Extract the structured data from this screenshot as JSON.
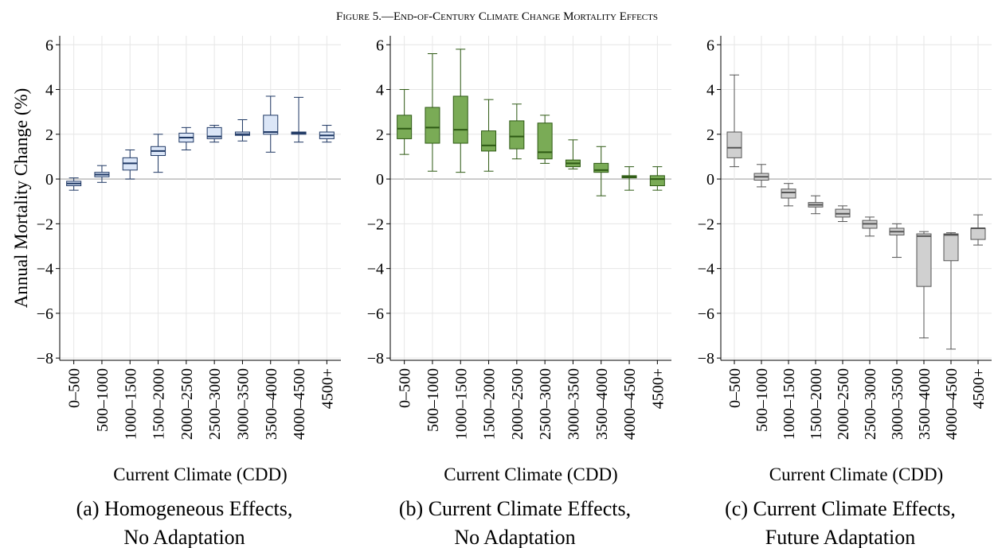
{
  "title": "Figure 5.—End-of-Century Climate Change Mortality Effects",
  "chart_data": [
    {
      "type": "box",
      "caption": [
        "(a) Homogeneous Effects,",
        "No Adaptation"
      ],
      "xlabel": "Current Climate (CDD)",
      "ylabel": "Annual Mortality Change (%)",
      "categories": [
        "0–500",
        "500–1000",
        "1000–1500",
        "1500–2000",
        "2000–2500",
        "2500–3000",
        "3000–3500",
        "3500–4000",
        "4000–4500",
        "4500+"
      ],
      "min": [
        -0.5,
        -0.15,
        0,
        0.3,
        1.3,
        1.65,
        1.7,
        1.2,
        1.65,
        1.65
      ],
      "q1": [
        -0.3,
        0.1,
        0.4,
        1.05,
        1.65,
        1.8,
        1.95,
        2.0,
        2.0,
        1.8
      ],
      "median": [
        -0.2,
        0.2,
        0.7,
        1.25,
        1.85,
        1.9,
        2.0,
        2.1,
        2.05,
        1.95
      ],
      "q3": [
        -0.1,
        0.3,
        0.95,
        1.45,
        2.05,
        2.3,
        2.1,
        2.85,
        2.1,
        2.1
      ],
      "max": [
        0.05,
        0.6,
        1.3,
        2.0,
        2.3,
        2.4,
        2.65,
        3.7,
        3.65,
        2.4
      ],
      "color": "#dbe6f7",
      "edgecolor": "#1f3864",
      "ylim": [
        -8.1,
        6.4
      ],
      "yticks": [
        {
          "value": -8,
          "label": "−8"
        },
        {
          "value": -6,
          "label": "−6"
        },
        {
          "value": -4,
          "label": "−4"
        },
        {
          "value": -2,
          "label": "−2"
        },
        0,
        2,
        4,
        6
      ],
      "grid": true
    },
    {
      "type": "box",
      "caption": [
        "(b) Current Climate Effects,",
        "No Adaptation"
      ],
      "xlabel": "Current Climate (CDD)",
      "categories": [
        "0–500",
        "500–1000",
        "1000–1500",
        "1500–2000",
        "2000–2500",
        "2500–3000",
        "3000–3500",
        "3500–4000",
        "4000–4500",
        "4500+"
      ],
      "min": [
        1.1,
        0.35,
        0.3,
        0.35,
        0.9,
        0.7,
        0.45,
        -0.75,
        -0.5,
        -0.5
      ],
      "q1": [
        1.8,
        1.6,
        1.6,
        1.25,
        1.35,
        0.9,
        0.55,
        0.3,
        0.05,
        -0.3
      ],
      "median": [
        2.25,
        2.3,
        2.2,
        1.5,
        1.9,
        1.2,
        0.7,
        0.4,
        0.1,
        0
      ],
      "q3": [
        2.85,
        3.2,
        3.7,
        2.15,
        2.6,
        2.5,
        0.85,
        0.7,
        0.15,
        0.15
      ],
      "max": [
        4.0,
        5.6,
        5.8,
        3.55,
        3.35,
        2.85,
        1.75,
        1.45,
        0.55,
        0.55
      ],
      "color": "#7aab56",
      "edgecolor": "#2e5a14",
      "ylim": [
        -8.1,
        6.4
      ],
      "yticks": [
        {
          "value": -8,
          "label": "−8"
        },
        {
          "value": -6,
          "label": "−6"
        },
        {
          "value": -4,
          "label": "−4"
        },
        {
          "value": -2,
          "label": "−2"
        },
        0,
        2,
        4,
        6
      ],
      "grid": true
    },
    {
      "type": "box",
      "caption": [
        "(c) Current Climate Effects,",
        "Future Adaptation"
      ],
      "xlabel": "Current Climate (CDD)",
      "categories": [
        "0–500",
        "500–1000",
        "1000–1500",
        "1500–2000",
        "2000–2500",
        "2500–3000",
        "3000–3500",
        "3500–4000",
        "4000–4500",
        "4500+"
      ],
      "min": [
        0.55,
        -0.35,
        -1.2,
        -1.55,
        -1.9,
        -2.55,
        -3.5,
        -7.1,
        -7.6,
        -2.95
      ],
      "q1": [
        0.95,
        -0.05,
        -0.85,
        -1.25,
        -1.7,
        -2.2,
        -2.5,
        -4.8,
        -3.65,
        -2.7
      ],
      "median": [
        1.4,
        0.1,
        -0.6,
        -1.15,
        -1.55,
        -2.0,
        -2.35,
        -2.55,
        -2.5,
        -2.2
      ],
      "q3": [
        2.1,
        0.25,
        -0.45,
        -1.05,
        -1.35,
        -1.85,
        -2.2,
        -2.45,
        -2.45,
        -2.2
      ],
      "max": [
        4.65,
        0.65,
        -0.2,
        -0.75,
        -1.2,
        -1.7,
        -2.0,
        -2.35,
        -2.4,
        -1.6
      ],
      "color": "#d0d0d0",
      "edgecolor": "#555555",
      "ylim": [
        -8.1,
        6.4
      ],
      "yticks": [
        {
          "value": -8,
          "label": "−8"
        },
        {
          "value": -6,
          "label": "−6"
        },
        {
          "value": -4,
          "label": "−4"
        },
        {
          "value": -2,
          "label": "−2"
        },
        0,
        2,
        4,
        6
      ],
      "grid": true
    }
  ]
}
